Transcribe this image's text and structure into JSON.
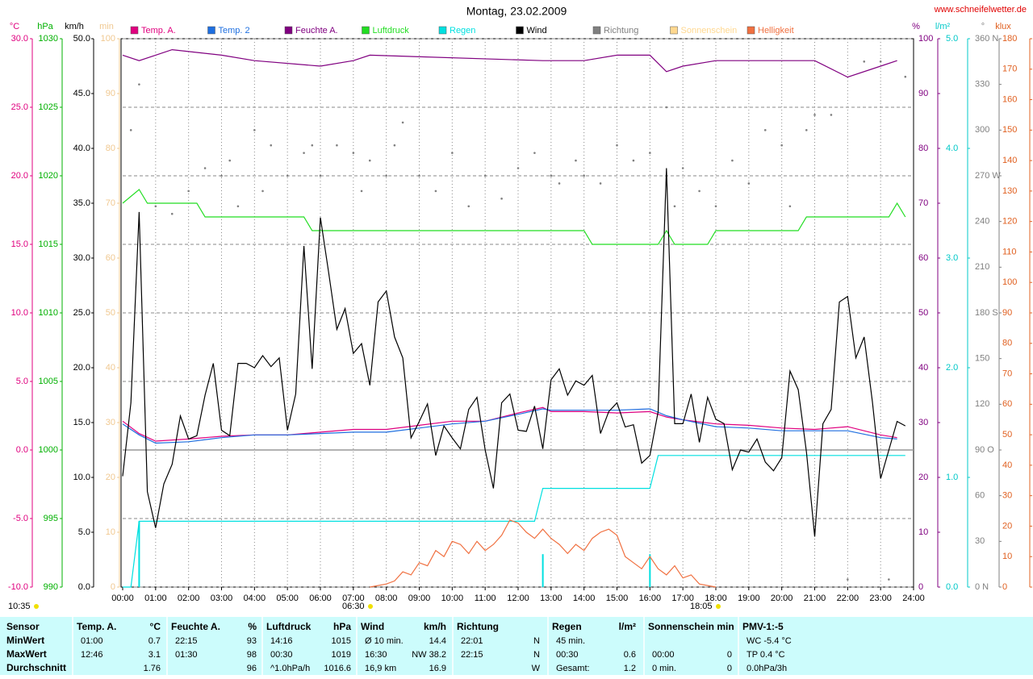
{
  "chart_data": {
    "type": "multi-axis",
    "title": "Montag, 23.02.2009",
    "source": "www.schneifelwetter.de",
    "xlim": [
      0,
      24
    ],
    "xticks": [
      {
        "value": 0,
        "label": "00:00"
      },
      {
        "value": 1,
        "label": "01:00"
      },
      {
        "value": 2,
        "label": "02:00"
      },
      {
        "value": 3,
        "label": "03:00"
      },
      {
        "value": 4,
        "label": "04:00"
      },
      {
        "value": 5,
        "label": "05:00"
      },
      {
        "value": 6,
        "label": "06:00"
      },
      {
        "value": 7,
        "label": "07:00"
      },
      {
        "value": 8,
        "label": "08:00"
      },
      {
        "value": 9,
        "label": "09:00"
      },
      {
        "value": 10,
        "label": "10:00"
      },
      {
        "value": 11,
        "label": "11:00"
      },
      {
        "value": 12,
        "label": "12:00"
      },
      {
        "value": 13,
        "label": "13:00"
      },
      {
        "value": 14,
        "label": "14:00"
      },
      {
        "value": 15,
        "label": "15:00"
      },
      {
        "value": 16,
        "label": "16:00"
      },
      {
        "value": 17,
        "label": "17:00"
      },
      {
        "value": 18,
        "label": "18:00"
      },
      {
        "value": 19,
        "label": "19:00"
      },
      {
        "value": 20,
        "label": "20:00"
      },
      {
        "value": 21,
        "label": "21:00"
      },
      {
        "value": 22,
        "label": "22:00"
      },
      {
        "value": 23,
        "label": "23:00"
      },
      {
        "value": 24,
        "label": "24:00"
      }
    ],
    "grid": true,
    "axes": [
      {
        "key": "y_c",
        "label": "°C",
        "color": "#e0007f",
        "lim": [
          -10,
          30
        ],
        "grid": true,
        "ticks": [
          {
            "value": -10,
            "label": "-10.0"
          },
          {
            "value": -5,
            "label": "-5.0"
          },
          {
            "value": 0,
            "label": "0.0"
          },
          {
            "value": 5,
            "label": "5.0"
          },
          {
            "value": 10,
            "label": "10.0"
          },
          {
            "value": 15,
            "label": "15.0"
          },
          {
            "value": 20,
            "label": "20.0"
          },
          {
            "value": 25,
            "label": "25.0"
          },
          {
            "value": 30,
            "label": "30.0"
          }
        ]
      },
      {
        "key": "y_hpa",
        "label": "hPa",
        "color": "#00b000",
        "lim": [
          990,
          1030
        ],
        "ticks": [
          990,
          995,
          1000,
          1005,
          1010,
          1015,
          1020,
          1025,
          1030
        ]
      },
      {
        "key": "y_kmh",
        "label": "km/h",
        "color": "#000000",
        "lim": [
          0,
          50
        ],
        "ticks": [
          {
            "value": 0,
            "label": "0.0"
          },
          {
            "value": 5,
            "label": "5.0"
          },
          {
            "value": 10,
            "label": "10.0"
          },
          {
            "value": 15,
            "label": "15.0"
          },
          {
            "value": 20,
            "label": "20.0"
          },
          {
            "value": 25,
            "label": "25.0"
          },
          {
            "value": 30,
            "label": "30.0"
          },
          {
            "value": 35,
            "label": "35.0"
          },
          {
            "value": 40,
            "label": "40.0"
          },
          {
            "value": 45,
            "label": "45.0"
          },
          {
            "value": 50,
            "label": "50.0"
          }
        ]
      },
      {
        "key": "y_min",
        "label": "min",
        "color": "#f0c890",
        "lim": [
          0,
          100
        ],
        "ticks": [
          0,
          10,
          20,
          30,
          40,
          50,
          60,
          70,
          80,
          90,
          100
        ]
      },
      {
        "key": "y_pct",
        "label": "%",
        "color": "#800080",
        "lim": [
          0,
          100
        ],
        "ticks": [
          0,
          10,
          20,
          30,
          40,
          50,
          60,
          70,
          80,
          90,
          100
        ]
      },
      {
        "key": "y_rain",
        "label": "l/m²",
        "color": "#00c8c8",
        "lim": [
          0,
          5
        ],
        "ticks": [
          {
            "value": 0,
            "label": "0.0"
          },
          {
            "value": 1,
            "label": "1.0"
          },
          {
            "value": 2,
            "label": "2.0"
          },
          {
            "value": 3,
            "label": "3.0"
          },
          {
            "value": 4,
            "label": "4.0"
          },
          {
            "value": 5,
            "label": "5.0"
          }
        ]
      },
      {
        "key": "y_dir",
        "label": "°",
        "color": "#808080",
        "lim": [
          0,
          360
        ],
        "ticks": [
          {
            "value": 0,
            "label": "0 N"
          },
          30,
          60,
          {
            "value": 90,
            "label": "90 O"
          },
          120,
          150,
          {
            "value": 180,
            "label": "180 S"
          },
          210,
          240,
          {
            "value": 270,
            "label": "270 W"
          },
          300,
          330,
          {
            "value": 360,
            "label": "360 N"
          }
        ]
      },
      {
        "key": "y_klux",
        "label": "klux",
        "color": "#e06020",
        "lim": [
          0,
          180
        ],
        "ticks": [
          0,
          10,
          20,
          30,
          40,
          50,
          60,
          70,
          80,
          90,
          100,
          110,
          120,
          130,
          140,
          150,
          160,
          170,
          180
        ]
      }
    ],
    "series": [
      {
        "name": "Temp. A.",
        "color": "#e0007f",
        "axis": "y_c",
        "style": "line",
        "x": [
          0,
          0.5,
          1,
          2,
          3,
          4,
          5,
          6,
          7,
          8,
          9,
          10,
          11,
          12,
          12.75,
          13,
          14,
          15,
          16,
          16.5,
          17,
          18,
          19,
          20,
          21,
          22,
          23,
          23.5
        ],
        "values": [
          2.1,
          1.2,
          0.65,
          0.8,
          1.0,
          1.1,
          1.1,
          1.3,
          1.5,
          1.5,
          1.8,
          2.1,
          2.1,
          2.7,
          3.1,
          2.8,
          2.8,
          2.7,
          2.8,
          2.4,
          2.2,
          1.9,
          1.8,
          1.6,
          1.5,
          1.7,
          1.1,
          0.9
        ]
      },
      {
        "name": "Temp. 2",
        "color": "#1e6fe0",
        "axis": "y_c",
        "style": "line",
        "x": [
          0,
          0.5,
          1,
          2,
          3,
          4,
          5,
          6,
          7,
          8,
          9,
          10,
          11,
          12,
          12.75,
          13,
          14,
          15,
          16,
          16.5,
          17,
          18,
          19,
          20,
          21,
          22,
          23,
          23.5
        ],
        "values": [
          1.9,
          1.1,
          0.5,
          0.6,
          0.9,
          1.1,
          1.1,
          1.2,
          1.3,
          1.3,
          1.6,
          1.9,
          2.1,
          2.6,
          3.0,
          2.9,
          2.9,
          2.9,
          3.0,
          2.5,
          2.2,
          1.7,
          1.6,
          1.4,
          1.4,
          1.4,
          0.9,
          0.8
        ]
      },
      {
        "name": "Feuchte A.",
        "color": "#800080",
        "axis": "y_pct",
        "style": "line",
        "x": [
          0,
          0.5,
          1,
          1.5,
          3,
          4,
          6,
          7,
          7.5,
          12.75,
          14,
          15,
          16,
          16.5,
          17,
          18,
          18.5,
          19,
          21,
          22,
          23,
          23.5
        ],
        "values": [
          97,
          96,
          97,
          98,
          97,
          96,
          95,
          96,
          97,
          96,
          96,
          97,
          97,
          94,
          95,
          96,
          96,
          96,
          96,
          93,
          95,
          96
        ]
      },
      {
        "name": "Luftdruck",
        "color": "#22dd22",
        "axis": "y_hpa",
        "style": "line",
        "x": [
          0,
          0.5,
          0.75,
          2.25,
          2.5,
          5.5,
          5.75,
          14,
          14.25,
          16.25,
          16.5,
          16.75,
          17.75,
          18,
          20.5,
          20.75,
          23.25,
          23.5,
          23.75
        ],
        "values": [
          1018,
          1019,
          1018,
          1018,
          1017,
          1017,
          1016,
          1016,
          1015,
          1015,
          1016,
          1015,
          1015,
          1016,
          1016,
          1017,
          1017,
          1018,
          1017
        ]
      },
      {
        "name": "Regen",
        "color": "#00e0e0",
        "axis": "y_rain",
        "style": "line",
        "x": [
          0,
          0.25,
          0.5,
          12.5,
          12.75,
          16,
          16.25,
          23.75
        ],
        "values": [
          0,
          0,
          0.6,
          0.6,
          0.9,
          0.9,
          1.2,
          1.2
        ],
        "bars": {
          "x": [
            0.5,
            12.75,
            16
          ],
          "values": [
            0.6,
            0.3,
            0.3
          ]
        }
      },
      {
        "name": "Wind",
        "color": "#000000",
        "axis": "y_kmh",
        "style": "line",
        "x": [
          0,
          0.25,
          0.5,
          0.75,
          1,
          1.25,
          1.5,
          1.75,
          2,
          2.25,
          2.5,
          2.75,
          3,
          3.25,
          3.5,
          3.75,
          4,
          4.25,
          4.5,
          4.75,
          5,
          5.25,
          5.5,
          5.75,
          6,
          6.25,
          6.5,
          6.75,
          7,
          7.25,
          7.5,
          7.75,
          8,
          8.25,
          8.5,
          8.75,
          9,
          9.25,
          9.5,
          9.75,
          10,
          10.25,
          10.5,
          10.75,
          11,
          11.25,
          11.5,
          11.75,
          12,
          12.25,
          12.5,
          12.75,
          13,
          13.25,
          13.5,
          13.75,
          14,
          14.25,
          14.5,
          14.75,
          15,
          15.25,
          15.5,
          15.75,
          16,
          16.25,
          16.5,
          16.75,
          17,
          17.25,
          17.5,
          17.75,
          18,
          18.25,
          18.5,
          18.75,
          19,
          19.25,
          19.5,
          19.75,
          20,
          20.25,
          20.5,
          20.75,
          21,
          21.25,
          21.5,
          21.75,
          22,
          22.25,
          22.5,
          22.75,
          23,
          23.25,
          23.5,
          23.75
        ],
        "values": [
          10.1,
          16.8,
          34.2,
          8.7,
          5.4,
          9.4,
          11.2,
          15.6,
          13.5,
          13.8,
          17.5,
          20.4,
          14.3,
          13.8,
          20.4,
          20.4,
          20.0,
          21.1,
          20.1,
          20.9,
          14.3,
          17.6,
          31.1,
          19.9,
          33.7,
          28.7,
          23.5,
          25.4,
          21.3,
          22.2,
          18.4,
          26.0,
          27.0,
          22.8,
          20.9,
          13.6,
          15.1,
          16.7,
          12.0,
          14.7,
          13.6,
          12.6,
          16.2,
          17.3,
          12.5,
          9.0,
          16.8,
          17.6,
          14.3,
          14.2,
          16.5,
          12.6,
          18.9,
          19.9,
          17.5,
          18.8,
          18.4,
          19.3,
          14.0,
          16.0,
          16.8,
          14.6,
          14.8,
          11.3,
          12.0,
          16.0,
          38.2,
          14.9,
          14.9,
          17.6,
          13.2,
          17.3,
          15.3,
          14.9,
          10.7,
          12.5,
          12.3,
          13.5,
          11.4,
          10.6,
          11.8,
          19.7,
          18.0,
          12.3,
          4.6,
          14.9,
          16.2,
          26.0,
          26.5,
          20.9,
          22.8,
          16.9,
          9.9,
          12.5,
          15.1,
          14.7
        ]
      },
      {
        "name": "Richtung",
        "color": "#808080",
        "axis": "y_dir",
        "style": "dots",
        "x": [
          0.25,
          0.5,
          1,
          1.5,
          2,
          2.5,
          3,
          3.25,
          3.5,
          4,
          4.25,
          4.5,
          5,
          5.5,
          5.75,
          6,
          6.5,
          7,
          7.25,
          7.5,
          8,
          8.25,
          8.5,
          9,
          9.5,
          10,
          10.5,
          11,
          11.5,
          12,
          12.5,
          13,
          13.25,
          13.75,
          14,
          14.5,
          15,
          15.5,
          16,
          16.5,
          16.75,
          17,
          17.5,
          18,
          18.5,
          19,
          19.5,
          20,
          20.25,
          20.75,
          21,
          21.5,
          22,
          22.5,
          23,
          23.25,
          23.75
        ],
        "values": [
          300,
          330,
          250,
          245,
          260,
          275,
          270,
          280,
          250,
          300,
          260,
          290,
          270,
          285,
          290,
          270,
          290,
          285,
          260,
          280,
          270,
          290,
          305,
          270,
          260,
          285,
          250,
          270,
          255,
          275,
          285,
          270,
          265,
          280,
          270,
          265,
          290,
          280,
          285,
          315,
          250,
          275,
          260,
          250,
          280,
          265,
          300,
          290,
          250,
          300,
          310,
          310,
          5,
          345,
          345,
          5,
          335
        ]
      },
      {
        "name": "Sonnenschein",
        "color": "#ffd890",
        "axis": "y_min",
        "style": "line",
        "x": [],
        "values": []
      },
      {
        "name": "Helligkeit",
        "color": "#f07040",
        "axis": "y_klux",
        "style": "line",
        "x": [
          7.5,
          8,
          8.25,
          8.5,
          8.75,
          9,
          9.25,
          9.5,
          9.75,
          10,
          10.25,
          10.5,
          10.75,
          11,
          11.25,
          11.5,
          11.75,
          12,
          12.25,
          12.5,
          12.75,
          13,
          13.25,
          13.5,
          13.75,
          14,
          14.25,
          14.5,
          14.75,
          15,
          15.25,
          15.5,
          15.75,
          16,
          16.25,
          16.5,
          16.75,
          17,
          17.25,
          17.5,
          18
        ],
        "values": [
          0,
          1,
          2,
          5,
          4,
          8,
          7,
          12,
          10,
          15,
          14,
          11,
          15,
          12,
          14,
          17,
          22,
          21,
          18,
          16,
          19,
          16,
          14,
          11,
          14,
          12,
          16,
          18,
          19,
          17,
          10,
          8,
          6,
          10,
          6,
          4,
          7,
          3,
          4,
          1,
          0
        ]
      }
    ],
    "annotations": [
      "10:35",
      "06:30",
      "18:05"
    ]
  },
  "table": {
    "sensor_column": {
      "header": "Sensor",
      "rows": [
        "MinWert",
        "MaxWert",
        "Durchschnitt"
      ]
    },
    "columns": [
      {
        "header": "Temp. A.",
        "unit": "°C",
        "rows": [
          [
            "01:00",
            "0.7"
          ],
          [
            "12:46",
            "3.1"
          ],
          [
            null,
            "1.76"
          ]
        ]
      },
      {
        "header": "Feuchte A.",
        "unit": "%",
        "rows": [
          [
            "22:15",
            "93"
          ],
          [
            "01:30",
            "98"
          ],
          [
            null,
            "96"
          ]
        ]
      },
      {
        "header": "Luftdruck",
        "unit": "hPa",
        "rows": [
          [
            "14:16",
            "1015"
          ],
          [
            "00:30",
            "1019"
          ],
          [
            "^1.0hPa/h",
            "1016.6"
          ]
        ]
      },
      {
        "header": "Wind",
        "unit": "km/h",
        "rows": [
          [
            "Ø 10 min.",
            "14.4"
          ],
          [
            "16:30",
            "NW 38.2"
          ],
          [
            "16,9 km",
            "16.9"
          ]
        ]
      },
      {
        "header": "Richtung",
        "unit": null,
        "rows": [
          [
            "22:01",
            "N"
          ],
          [
            "22:15",
            "N"
          ],
          [
            null,
            "W"
          ]
        ]
      },
      {
        "header": "Regen",
        "unit": "l/m²",
        "rows": [
          [
            "45 min.",
            null
          ],
          [
            "00:30",
            "0.6"
          ],
          [
            "Gesamt:",
            "1.2"
          ]
        ]
      },
      {
        "header": "Sonnenschein min",
        "unit": null,
        "rows": [
          [
            null,
            null
          ],
          [
            "00:00",
            "0"
          ],
          [
            "0 min.",
            "0"
          ]
        ]
      },
      {
        "header": "PMV-1:-5",
        "unit": null,
        "rows": [
          [
            "WC -5.4 °C",
            null
          ],
          [
            "TP 0.4 °C",
            null
          ],
          [
            "0.0hPa/3h",
            null
          ]
        ]
      }
    ]
  }
}
